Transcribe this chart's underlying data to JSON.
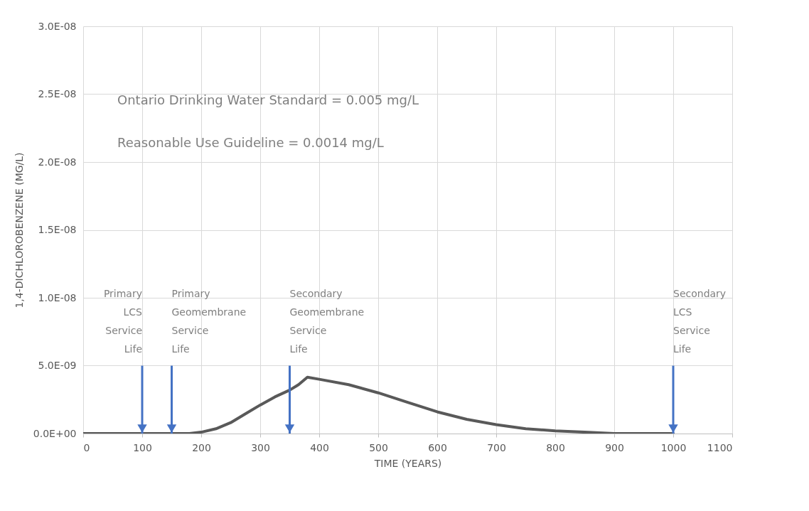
{
  "chart_data": {
    "type": "line",
    "xlabel": "TIME (YEARS)",
    "ylabel": "1,4-DICHLOROBENZENE (MG/L)",
    "x": [
      0,
      50,
      100,
      150,
      180,
      200,
      225,
      250,
      275,
      300,
      325,
      350,
      365,
      380,
      400,
      450,
      500,
      550,
      600,
      650,
      700,
      750,
      800,
      850,
      900,
      950,
      1000
    ],
    "series": [
      {
        "color": "#595959",
        "values": [
          0,
          0,
          0,
          0,
          0,
          1e-10,
          3.5e-10,
          8e-10,
          1.45e-09,
          2.1e-09,
          2.7e-09,
          3.2e-09,
          3.6e-09,
          4.15e-09,
          4e-09,
          3.6e-09,
          3e-09,
          2.3e-09,
          1.6e-09,
          1.05e-09,
          6.5e-10,
          3.5e-10,
          2e-10,
          1e-10,
          0,
          0,
          0
        ]
      }
    ],
    "xlim": [
      0,
      1100
    ],
    "xticks": [
      0,
      100,
      200,
      300,
      400,
      500,
      600,
      700,
      800,
      900,
      1000,
      1100
    ],
    "ylim": [
      0,
      3e-08
    ],
    "yticks": [
      {
        "value": 0,
        "label": "0.0E+00"
      },
      {
        "value": 5e-09,
        "label": "5.0E-09"
      },
      {
        "value": 1e-08,
        "label": "1.0E-08"
      },
      {
        "value": 1.5e-08,
        "label": "1.5E-08"
      },
      {
        "value": 2e-08,
        "label": "2.0E-08"
      },
      {
        "value": 2.5e-08,
        "label": "2.5E-08"
      },
      {
        "value": 3e-08,
        "label": "3.0E-08"
      }
    ],
    "grid": true,
    "marker": "none",
    "line_style": "solid",
    "annotations": [
      "Ontario Drinking Water Standard = 0.005 mg/L",
      "Reasonable Use Guideline = 0.0014 mg/L"
    ],
    "ref_lines": [
      {
        "axis": "x",
        "value": 100,
        "label": "Primary\nLCS\nService\nLife",
        "color": "#4472c4"
      },
      {
        "axis": "x",
        "value": 150,
        "label": "Primary\nGeomembrane\nService\nLife",
        "color": "#4472c4"
      },
      {
        "axis": "x",
        "value": 350,
        "label": "Secondary\nGeomembrane\nService\nLife",
        "color": "#4472c4"
      },
      {
        "axis": "x",
        "value": 1000,
        "label": "Secondary\nLCS\nService\nLife",
        "color": "#4472c4"
      }
    ]
  }
}
